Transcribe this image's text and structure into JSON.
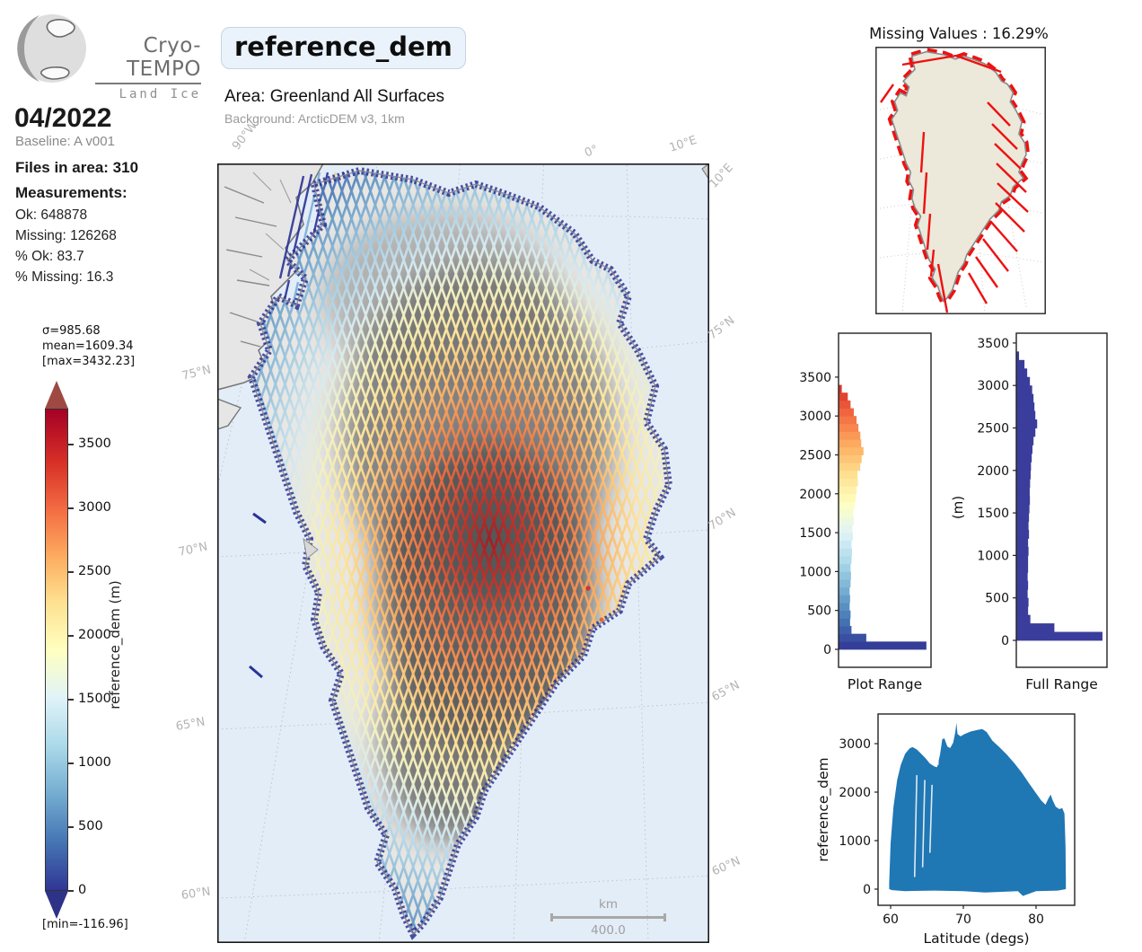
{
  "header": {
    "logo_title": "Cryo-TEMPO",
    "logo_subtitle": "Land Ice",
    "date": "04/2022",
    "baseline": "Baseline: A v001",
    "files_in_area": "Files in area: 310",
    "measurements_label": "Measurements:",
    "ok": "Ok: 648878",
    "missing": "Missing: 126268",
    "pct_ok": "% Ok: 83.7",
    "pct_missing": "% Missing: 16.3"
  },
  "variable_panel": {
    "title": "reference_dem",
    "area": "Area: Greenland All Surfaces",
    "background": "Background: ArcticDEM v3, 1km"
  },
  "colorbar": {
    "sigma": "σ=985.68",
    "mean": "mean=1609.34",
    "max": "[max=3432.23]",
    "min": "[min=-116.96]",
    "axis_label": "reference_dem (m)",
    "ticks": [
      "3500",
      "3000",
      "2500",
      "2000",
      "1500",
      "1000",
      "500",
      "0"
    ],
    "cmap_stops": [
      {
        "v": 0,
        "c": "#313695"
      },
      {
        "v": 375,
        "c": "#4575b4"
      },
      {
        "v": 750,
        "c": "#74add1"
      },
      {
        "v": 1125,
        "c": "#abd9e9"
      },
      {
        "v": 1500,
        "c": "#e0f3f8"
      },
      {
        "v": 1875,
        "c": "#ffffbf"
      },
      {
        "v": 2250,
        "c": "#fee090"
      },
      {
        "v": 2625,
        "c": "#fdae61"
      },
      {
        "v": 3000,
        "c": "#f46d43"
      },
      {
        "v": 3375,
        "c": "#d73027"
      },
      {
        "v": 3750,
        "c": "#a50026"
      }
    ]
  },
  "map": {
    "lon_labels": [
      "90°W",
      "0°",
      "10°E",
      "10°E"
    ],
    "lat_labels_left": [
      "75°N",
      "70°N",
      "65°N",
      "60°N"
    ],
    "lat_labels_right": [
      "75°N",
      "70°N",
      "65°N",
      "60°N"
    ],
    "scalebar_unit": "km",
    "scalebar_value": "400.0"
  },
  "missing_panel": {
    "title": "Missing Values : 16.29%"
  },
  "chart_data": [
    {
      "id": "plot_range_histogram",
      "type": "bar",
      "orientation": "horizontal",
      "title": "Plot Range",
      "ylabel": "",
      "yticks": [
        0,
        500,
        1000,
        1500,
        2000,
        2500,
        3000,
        3500
      ],
      "ylim": [
        -230,
        4060
      ],
      "bin_size_m": 100,
      "bins_start_m": 0,
      "color_mode": "cmap",
      "values_rel": [
        0.95,
        0.3,
        0.14,
        0.125,
        0.13,
        0.12,
        0.125,
        0.12,
        0.13,
        0.135,
        0.13,
        0.14,
        0.145,
        0.14,
        0.155,
        0.15,
        0.165,
        0.16,
        0.175,
        0.185,
        0.195,
        0.21,
        0.205,
        0.235,
        0.25,
        0.27,
        0.245,
        0.235,
        0.215,
        0.195,
        0.165,
        0.13,
        0.1,
        0.035
      ]
    },
    {
      "id": "full_range_histogram",
      "type": "bar",
      "orientation": "horizontal",
      "title": "Full Range",
      "ylabel": "(m)",
      "yticks": [
        0,
        500,
        1000,
        1500,
        2000,
        2500,
        3000,
        3500
      ],
      "ylim": [
        -370,
        3620
      ],
      "bin_size_m": 100,
      "bins_start_m": 0,
      "color_mode": "solid",
      "solid_color": "#3a3d9b",
      "values_rel": [
        0.95,
        0.42,
        0.155,
        0.13,
        0.135,
        0.125,
        0.13,
        0.125,
        0.13,
        0.13,
        0.135,
        0.13,
        0.14,
        0.135,
        0.14,
        0.145,
        0.15,
        0.148,
        0.152,
        0.158,
        0.162,
        0.17,
        0.178,
        0.19,
        0.21,
        0.23,
        0.21,
        0.2,
        0.19,
        0.175,
        0.15,
        0.12,
        0.09,
        0.03
      ]
    },
    {
      "id": "latitude_scatter",
      "type": "scatter",
      "xlabel": "Latitude (degs)",
      "ylabel": "reference_dem",
      "xticks": [
        60,
        70,
        80
      ],
      "yticks": [
        0,
        1000,
        2000,
        3000
      ],
      "xlim": [
        58.3,
        85.3
      ],
      "ylim": [
        -370,
        3610
      ],
      "color": "#1f77b4",
      "envelope_upper": [
        [
          59.8,
          120
        ],
        [
          60,
          950
        ],
        [
          60.4,
          1700
        ],
        [
          60.9,
          2250
        ],
        [
          61.4,
          2560
        ],
        [
          62,
          2790
        ],
        [
          62.6,
          2900
        ],
        [
          63,
          2930
        ],
        [
          63.6,
          2880
        ],
        [
          64.2,
          2790
        ],
        [
          64.8,
          2700
        ],
        [
          65.4,
          2590
        ],
        [
          66,
          2530
        ],
        [
          66.4,
          2515
        ],
        [
          66.8,
          2780
        ],
        [
          67.1,
          3090
        ],
        [
          67.4,
          3110
        ],
        [
          67.8,
          2940
        ],
        [
          68.2,
          2910
        ],
        [
          68.6,
          3020
        ],
        [
          68.9,
          3240
        ],
        [
          69.05,
          3430
        ],
        [
          69.2,
          3200
        ],
        [
          69.6,
          3150
        ],
        [
          70.2,
          3200
        ],
        [
          71,
          3250
        ],
        [
          72,
          3285
        ],
        [
          72.6,
          3300
        ],
        [
          73.2,
          3240
        ],
        [
          74,
          3060
        ],
        [
          75,
          2920
        ],
        [
          76,
          2770
        ],
        [
          77,
          2600
        ],
        [
          78,
          2410
        ],
        [
          79,
          2190
        ],
        [
          80,
          1975
        ],
        [
          80.7,
          1830
        ],
        [
          81.3,
          1740
        ],
        [
          81.7,
          1870
        ],
        [
          82,
          1950
        ],
        [
          82.3,
          1830
        ],
        [
          82.7,
          1700
        ],
        [
          83.2,
          1650
        ],
        [
          83.6,
          1670
        ],
        [
          83.9,
          1560
        ],
        [
          84.05,
          900
        ],
        [
          84.1,
          200
        ]
      ],
      "envelope_lower": [
        [
          84.1,
          0
        ],
        [
          83,
          -30
        ],
        [
          80,
          -40
        ],
        [
          78.2,
          -140
        ],
        [
          77.5,
          -40
        ],
        [
          73,
          -70
        ],
        [
          70,
          -40
        ],
        [
          66,
          -30
        ],
        [
          62,
          -40
        ],
        [
          60.2,
          -20
        ],
        [
          59.8,
          0
        ]
      ]
    }
  ]
}
